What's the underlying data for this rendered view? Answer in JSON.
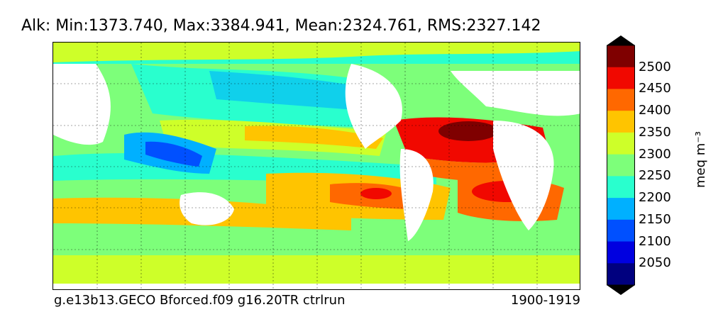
{
  "title": "Alk: Min:1373.740, Max:3384.941, Mean:2324.761, RMS:2327.142",
  "caption_left": "g.e13b13.GECO Bforced.f09 g16.20TR ctrlrun",
  "caption_right": "1900-1919",
  "colorbar": {
    "units": "meq m⁻³",
    "tick_labels": [
      "2500",
      "2450",
      "2400",
      "2350",
      "2300",
      "2250",
      "2200",
      "2150",
      "2100",
      "2050"
    ],
    "levels": [
      2050,
      2100,
      2150,
      2200,
      2250,
      2300,
      2350,
      2400,
      2450,
      2500
    ],
    "colors": [
      "#00007f",
      "#0000e0",
      "#0050ff",
      "#00b0ff",
      "#29ffce",
      "#7dff7a",
      "#ceff29",
      "#ffc400",
      "#ff6800",
      "#f10800",
      "#7f0000"
    ],
    "extend": "both"
  }
}
